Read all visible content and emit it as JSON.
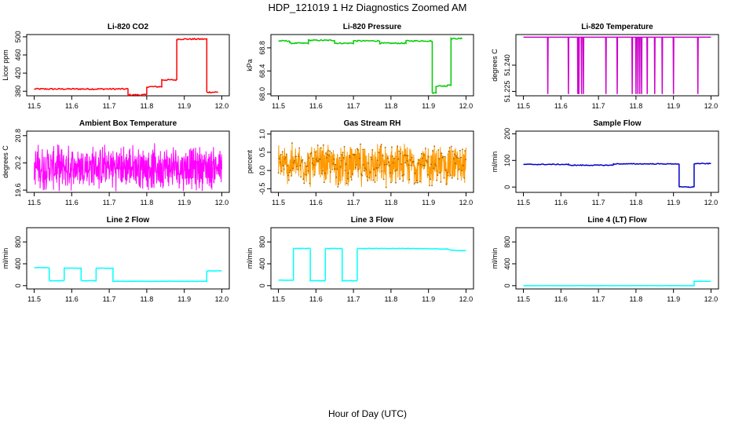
{
  "title": "HDP_121019  1 Hz Diagnostics Zoomed AM",
  "xlabel": "Hour of Day (UTC)",
  "chart_data": [
    {
      "id": "co2",
      "type": "line",
      "title": "Li-820 CO2",
      "ylabel": "Licor ppm",
      "color": "#ff0000",
      "xlim": [
        11.48,
        12.02
      ],
      "ylim": [
        370,
        505
      ],
      "xticks": [
        "11.5",
        "11.6",
        "11.7",
        "11.8",
        "11.9",
        "12.0"
      ],
      "yticks": [
        "380",
        "420",
        "460",
        "500"
      ],
      "x": [
        11.5,
        11.75,
        11.75,
        11.8,
        11.8,
        11.84,
        11.84,
        11.88,
        11.88,
        11.96,
        11.96,
        11.99
      ],
      "y": [
        385,
        385,
        372,
        372,
        390,
        390,
        405,
        405,
        495,
        495,
        378,
        378
      ],
      "noise": 1.5
    },
    {
      "id": "pressure",
      "type": "line",
      "title": "Li-820 Pressure",
      "ylabel": "kPa",
      "color": "#00cc00",
      "xlim": [
        11.48,
        12.02
      ],
      "ylim": [
        67.97,
        69.03
      ],
      "xticks": [
        "11.5",
        "11.6",
        "11.7",
        "11.8",
        "11.9",
        "12.0"
      ],
      "yticks": [
        "68.0",
        "68.4",
        "68.8"
      ],
      "x": [
        11.5,
        11.53,
        11.53,
        11.58,
        11.58,
        11.65,
        11.65,
        11.7,
        11.7,
        11.77,
        11.77,
        11.84,
        11.84,
        11.91,
        11.91,
        11.92,
        11.92,
        11.95,
        11.95,
        11.96,
        11.96,
        11.99
      ],
      "y": [
        68.92,
        68.92,
        68.88,
        68.88,
        68.93,
        68.93,
        68.88,
        68.88,
        68.92,
        68.92,
        68.88,
        68.88,
        68.92,
        68.92,
        68.02,
        68.02,
        68.14,
        68.14,
        68.16,
        68.16,
        68.96,
        68.96
      ],
      "noise": 0.01
    },
    {
      "id": "licor_temp",
      "type": "line",
      "title": "Li-820 Temperature",
      "ylabel": "degrees C",
      "color": "#cc00cc",
      "xlim": [
        11.48,
        12.02
      ],
      "ylim": [
        51.2225,
        51.2575
      ],
      "xticks": [
        "11.5",
        "11.6",
        "11.7",
        "11.8",
        "11.9",
        "12.0"
      ],
      "yticks": [
        "51.225",
        "51.240"
      ],
      "baseline": 51.256,
      "dip": 51.2235,
      "dips": [
        11.565,
        11.62,
        11.645,
        11.648,
        11.655,
        11.66,
        11.72,
        11.75,
        11.79,
        11.8,
        11.805,
        11.81,
        11.815,
        11.83,
        11.85,
        11.87,
        11.9,
        11.965
      ]
    },
    {
      "id": "box_temp",
      "type": "line",
      "title": "Ambient Box Temperature",
      "ylabel": "degrees C",
      "color": "#ff00ff",
      "xlim": [
        11.48,
        12.02
      ],
      "ylim": [
        19.55,
        20.9
      ],
      "xticks": [
        "11.5",
        "11.6",
        "11.7",
        "11.8",
        "11.9",
        "12.0"
      ],
      "yticks": [
        "19.6",
        "20.2",
        "20.8"
      ],
      "mean": 20.1,
      "spread": 0.55
    },
    {
      "id": "rh",
      "type": "line",
      "title": "Gas Stream RH",
      "ylabel": "percent",
      "color": "#ff9900",
      "xlim": [
        11.48,
        12.02
      ],
      "ylim": [
        -0.6,
        1.08
      ],
      "xticks": [
        "11.5",
        "11.6",
        "11.7",
        "11.8",
        "11.9",
        "12.0"
      ],
      "yticks": [
        "-0.5",
        "0.0",
        "0.5",
        "1.0"
      ],
      "mean": 0.15,
      "spread": 0.65
    },
    {
      "id": "sample_flow",
      "type": "line",
      "title": "Sample Flow",
      "ylabel": "ml/min",
      "color": "#0000cc",
      "xlim": [
        11.48,
        12.02
      ],
      "ylim": [
        -20,
        210
      ],
      "xticks": [
        "11.5",
        "11.6",
        "11.7",
        "11.8",
        "11.9",
        "12.0"
      ],
      "yticks": [
        "0",
        "100",
        "200"
      ],
      "x": [
        11.5,
        11.62,
        11.62,
        11.74,
        11.74,
        11.915,
        11.915,
        11.955,
        11.955,
        12.0
      ],
      "y": [
        85,
        85,
        82,
        82,
        87,
        87,
        0,
        0,
        88,
        88
      ],
      "noise": 1.5
    },
    {
      "id": "line2_flow",
      "type": "line",
      "title": "Line 2 Flow",
      "ylabel": "ml/min",
      "color": "#00ffff",
      "xlim": [
        11.48,
        12.02
      ],
      "ylim": [
        -60,
        1060
      ],
      "xticks": [
        "11.5",
        "11.6",
        "11.7",
        "11.8",
        "11.9",
        "12.0"
      ],
      "yticks": [
        "0",
        "400",
        "800"
      ],
      "x": [
        11.5,
        11.54,
        11.54,
        11.58,
        11.58,
        11.625,
        11.625,
        11.665,
        11.665,
        11.71,
        11.71,
        11.96,
        11.96,
        12.0
      ],
      "y": [
        330,
        330,
        90,
        90,
        320,
        320,
        90,
        90,
        320,
        320,
        80,
        80,
        270,
        270
      ],
      "noise": 3
    },
    {
      "id": "line3_flow",
      "type": "line",
      "title": "Line 3 Flow",
      "ylabel": "ml/min",
      "color": "#00ffff",
      "xlim": [
        11.48,
        12.02
      ],
      "ylim": [
        -60,
        1060
      ],
      "xticks": [
        "11.5",
        "11.6",
        "11.7",
        "11.8",
        "11.9",
        "12.0"
      ],
      "yticks": [
        "0",
        "400",
        "800"
      ],
      "x": [
        11.5,
        11.54,
        11.54,
        11.585,
        11.585,
        11.625,
        11.625,
        11.67,
        11.67,
        11.71,
        11.71,
        11.85,
        11.95,
        11.96,
        12.0
      ],
      "y": [
        100,
        100,
        680,
        680,
        90,
        90,
        680,
        680,
        90,
        90,
        680,
        680,
        670,
        650,
        640
      ],
      "noise": 4
    },
    {
      "id": "line4_flow",
      "type": "line",
      "title": "Line 4 (LT) Flow",
      "ylabel": "ml/min",
      "color": "#00ffff",
      "xlim": [
        11.48,
        12.02
      ],
      "ylim": [
        -60,
        1060
      ],
      "xticks": [
        "11.5",
        "11.6",
        "11.7",
        "11.8",
        "11.9",
        "12.0"
      ],
      "yticks": [
        "0",
        "400",
        "800"
      ],
      "x": [
        11.5,
        11.955,
        11.955,
        12.0
      ],
      "y": [
        0,
        0,
        80,
        80
      ],
      "noise": 1
    }
  ]
}
